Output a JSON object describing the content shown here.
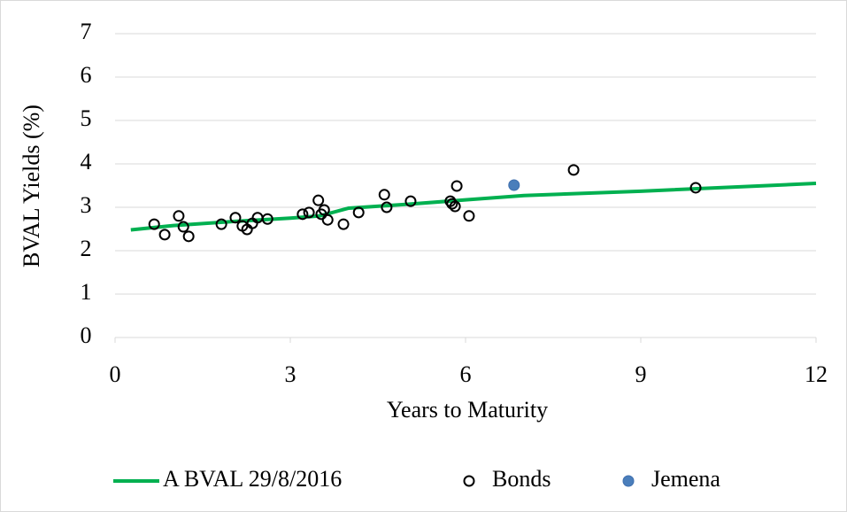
{
  "chart_data": {
    "type": "scatter",
    "xlabel": "Years to Maturity",
    "ylabel": "BVAL Yields (%)",
    "xlim": [
      0,
      12
    ],
    "ylim": [
      0,
      7
    ],
    "xticks": [
      0,
      3,
      6,
      9,
      12
    ],
    "yticks": [
      0,
      1,
      2,
      3,
      4,
      5,
      6,
      7
    ],
    "grid": true,
    "legend": "bottom",
    "series": [
      {
        "name": "A BVAL 29/8/2016",
        "type": "line",
        "color": "#00b050",
        "x": [
          0.27,
          1,
          2,
          3,
          3.5,
          4,
          5,
          6,
          7,
          9,
          12
        ],
        "values": [
          2.48,
          2.58,
          2.67,
          2.75,
          2.8,
          2.98,
          3.07,
          3.17,
          3.27,
          3.37,
          3.55
        ]
      },
      {
        "name": "Bonds",
        "type": "scatter",
        "marker": "hollow",
        "color": "#000000",
        "x": [
          0.67,
          0.85,
          1.09,
          1.17,
          1.26,
          1.82,
          2.06,
          2.18,
          2.26,
          2.35,
          2.44,
          2.61,
          3.21,
          3.32,
          3.48,
          3.53,
          3.58,
          3.64,
          3.91,
          4.17,
          4.61,
          4.65,
          5.06,
          5.74,
          5.77,
          5.82,
          5.85,
          6.06,
          7.85,
          9.94
        ],
        "values": [
          2.61,
          2.37,
          2.8,
          2.55,
          2.33,
          2.61,
          2.76,
          2.57,
          2.49,
          2.63,
          2.76,
          2.73,
          2.84,
          2.88,
          3.16,
          2.84,
          2.94,
          2.71,
          2.61,
          2.88,
          3.29,
          3.0,
          3.14,
          3.14,
          3.08,
          3.02,
          3.49,
          2.8,
          3.86,
          3.45
        ]
      },
      {
        "name": "Jemena",
        "type": "scatter",
        "marker": "filled",
        "color": "#4a7ebb",
        "x": [
          6.83
        ],
        "values": [
          3.51
        ]
      }
    ]
  }
}
